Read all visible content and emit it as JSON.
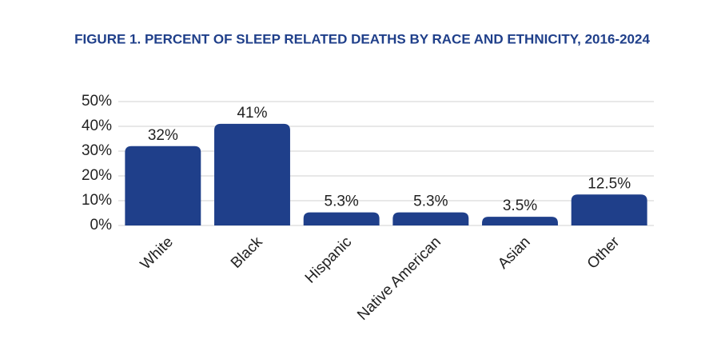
{
  "chart_data": {
    "type": "bar",
    "title": "FIGURE 1. PERCENT OF SLEEP RELATED DEATHS BY RACE AND ETHNICITY, 2016-2024",
    "categories": [
      "White",
      "Black",
      "Hispanic",
      "Native American",
      "Asian",
      "Other"
    ],
    "values": [
      32,
      41,
      5.3,
      5.3,
      3.5,
      12.5
    ],
    "value_labels": [
      "32%",
      "41%",
      "5.3%",
      "5.3%",
      "3.5%",
      "12.5%"
    ],
    "color": "#1f3f8a",
    "ylim": [
      0,
      50
    ],
    "yticks": [
      {
        "value": 0,
        "label": "0%"
      },
      {
        "value": 10,
        "label": "10%"
      },
      {
        "value": 20,
        "label": "20%"
      },
      {
        "value": 30,
        "label": "30%"
      },
      {
        "value": 40,
        "label": "40%"
      },
      {
        "value": 50,
        "label": "50%"
      }
    ],
    "grid": true
  }
}
